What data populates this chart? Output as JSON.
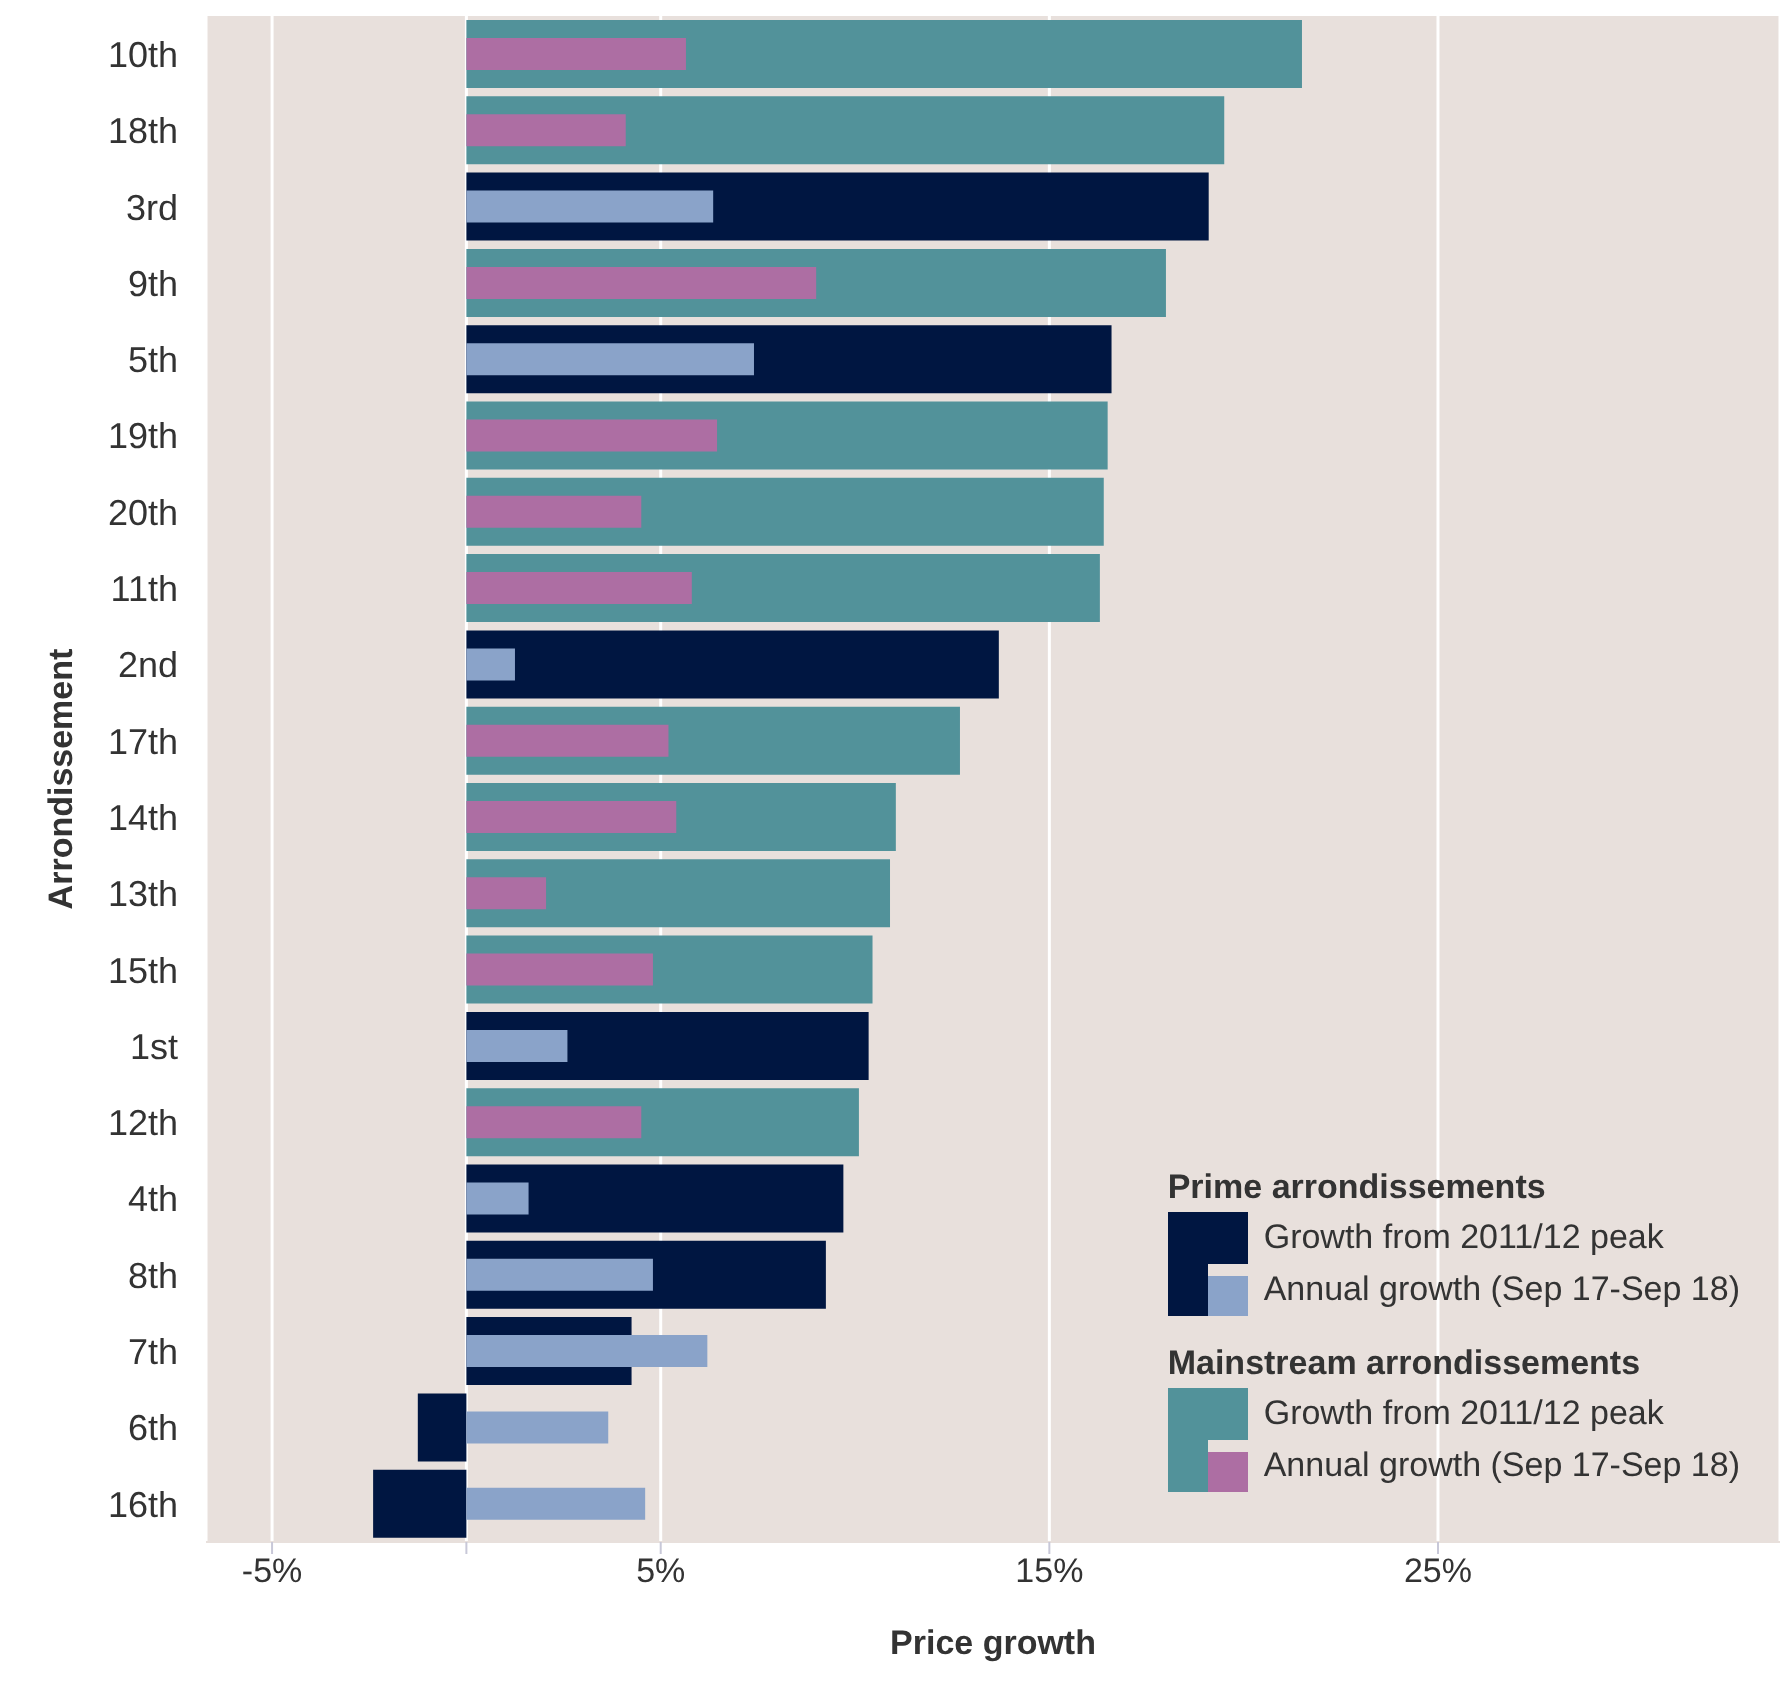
{
  "chart_data": {
    "type": "bar",
    "orientation": "horizontal",
    "xlabel": "Price growth",
    "ylabel": "Arrondissement",
    "categories": [
      "10th",
      "18th",
      "3rd",
      "9th",
      "5th",
      "19th",
      "20th",
      "11th",
      "2nd",
      "17th",
      "14th",
      "13th",
      "15th",
      "1st",
      "12th",
      "4th",
      "8th",
      "7th",
      "6th",
      "16th"
    ],
    "series": [
      {
        "name": "Growth from 2011/12 peak",
        "color": "#001641",
        "values": [
          null,
          null,
          19.1,
          null,
          16.6,
          null,
          null,
          null,
          13.7,
          null,
          null,
          null,
          null,
          10.35,
          null,
          9.7,
          9.25,
          4.25,
          -1.25,
          -2.4
        ]
      },
      {
        "name": "Annual growth (Sep 17-Sep 18)",
        "color": "#8aa3c9",
        "values": [
          null,
          null,
          6.35,
          null,
          7.4,
          null,
          null,
          null,
          1.25,
          null,
          null,
          null,
          null,
          2.6,
          null,
          1.6,
          4.8,
          6.2,
          3.65,
          4.6
        ]
      },
      {
        "name": "Growth from 2011/12 peak",
        "color": "#52929a",
        "values": [
          21.5,
          19.5,
          null,
          18.0,
          null,
          16.5,
          16.4,
          16.3,
          null,
          12.7,
          11.05,
          10.9,
          10.45,
          null,
          10.1,
          null,
          null,
          null,
          null,
          null
        ]
      },
      {
        "name": "Annual growth (Sep 17-Sep 18)",
        "color": "#ad6ea3",
        "values": [
          5.65,
          4.1,
          null,
          9.0,
          null,
          6.45,
          4.5,
          5.8,
          null,
          5.2,
          5.4,
          2.05,
          4.8,
          null,
          4.5,
          null,
          null,
          null,
          null,
          null
        ]
      }
    ],
    "annotations": [
      "Prime arrondissements",
      "Mainstream arrondissements"
    ],
    "xlim": [
      -6.7,
      33.8
    ],
    "xticks": [
      {
        "value": -5,
        "label": "-5%"
      },
      {
        "value": 0,
        "label": null
      },
      {
        "value": 5,
        "label": "5%"
      },
      {
        "value": 15,
        "label": "15%"
      },
      {
        "value": 25,
        "label": "25%"
      }
    ],
    "grid": "x",
    "legend": "bottom right"
  }
}
